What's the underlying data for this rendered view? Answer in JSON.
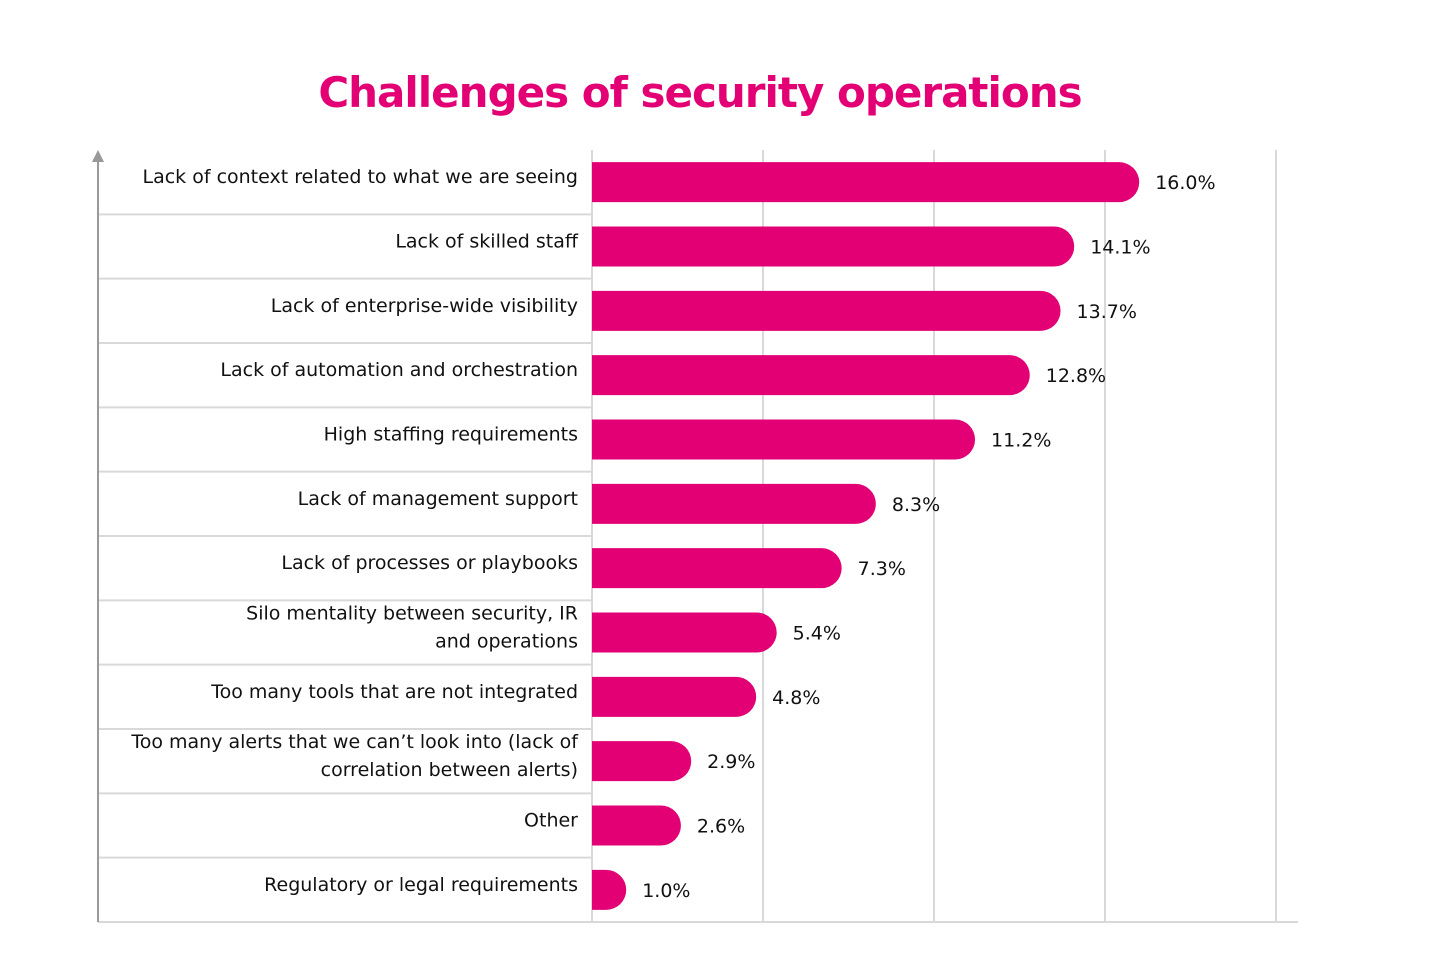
{
  "chart_data": {
    "type": "bar",
    "orientation": "horizontal",
    "title": "Challenges of security operations",
    "categories": [
      [
        "Lack of context related to what we are seeing"
      ],
      [
        "Lack of skilled staff"
      ],
      [
        "Lack of enterprise-wide visibility"
      ],
      [
        "Lack of automation and orchestration"
      ],
      [
        "High staffing requirements"
      ],
      [
        "Lack of management support"
      ],
      [
        "Lack of processes or playbooks"
      ],
      [
        "Silo mentality between security, IR",
        "and operations"
      ],
      [
        "Too many tools that are not integrated"
      ],
      [
        "Too many alerts that we can’t look into (lack of",
        "correlation between alerts)"
      ],
      [
        "Other"
      ],
      [
        "Regulatory or legal requirements"
      ]
    ],
    "values": [
      16.0,
      14.1,
      13.7,
      12.8,
      11.2,
      8.3,
      7.3,
      5.4,
      4.8,
      2.9,
      2.6,
      1.0
    ],
    "value_labels": [
      "16.0%",
      "14.1%",
      "13.7%",
      "12.8%",
      "11.2%",
      "8.3%",
      "7.3%",
      "5.4%",
      "4.8%",
      "2.9%",
      "2.6%",
      "1.0%"
    ],
    "unit": "%",
    "xlim": [
      0,
      20
    ],
    "grid_step": 5,
    "grid": true,
    "tick_labels_shown": false,
    "bar_color": "#E20074",
    "grid_color": "#d9d9d9",
    "axis_color": "#999999"
  }
}
